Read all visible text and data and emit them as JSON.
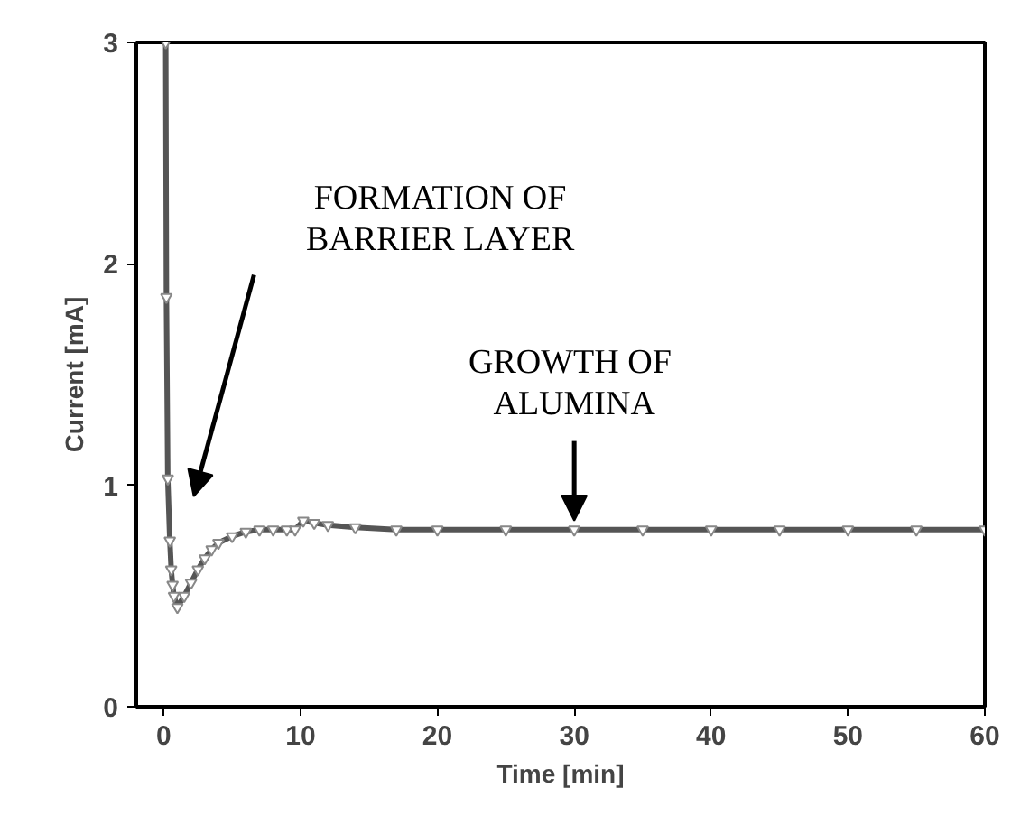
{
  "chart_data": {
    "type": "line",
    "xlabel": "Time [min]",
    "ylabel": "Current [mA]",
    "x": [
      0.15,
      0.2,
      0.3,
      0.45,
      0.55,
      0.65,
      0.75,
      1.0,
      1.5,
      2.0,
      2.5,
      3.0,
      3.5,
      4.0,
      5.0,
      6.0,
      7.0,
      8.0,
      9.0,
      9.6,
      10.2,
      11.0,
      12.0,
      14.0,
      17.0,
      20.0,
      25.0,
      30.0,
      35.0,
      40.0,
      45.0,
      50.0,
      55.0,
      60.0
    ],
    "series": [
      {
        "color": "#555555",
        "values": [
          3.0,
          1.85,
          1.03,
          0.75,
          0.62,
          0.55,
          0.5,
          0.45,
          0.5,
          0.56,
          0.62,
          0.67,
          0.71,
          0.74,
          0.77,
          0.79,
          0.8,
          0.8,
          0.8,
          0.8,
          0.84,
          0.83,
          0.82,
          0.81,
          0.8,
          0.8,
          0.8,
          0.8,
          0.8,
          0.8,
          0.8,
          0.8,
          0.8,
          0.8
        ]
      }
    ],
    "xlim": [
      -2,
      60
    ],
    "ylim": [
      0,
      3
    ],
    "xticks": [
      0,
      10,
      20,
      30,
      40,
      50,
      60
    ],
    "yticks": [
      0,
      1,
      2,
      3
    ],
    "grid": false,
    "marker": "triangle",
    "line_style": "solid",
    "annotations": [
      "FORMATION OF\nBARRIER LAYER",
      {
        "text": "GROWTH  OF\nALUMINA",
        "x": 30,
        "y": 0.84
      }
    ]
  }
}
